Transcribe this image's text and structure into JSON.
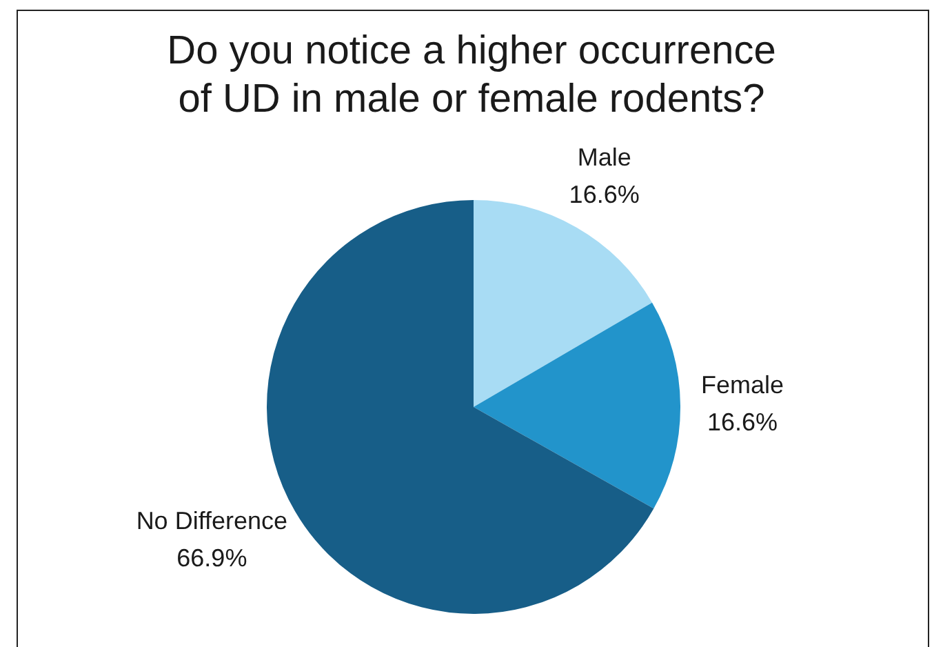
{
  "chart_data": {
    "type": "pie",
    "title": "Do you notice a higher occurrence of UD in male or female rodents?",
    "categories": [
      "Male",
      "Female",
      "No Difference"
    ],
    "values": [
      16.6,
      16.6,
      66.9
    ],
    "colors": [
      "#a8dcf4",
      "#2294cb",
      "#175e88"
    ],
    "value_labels": [
      "16.6%",
      "16.6%",
      "66.9%"
    ]
  }
}
